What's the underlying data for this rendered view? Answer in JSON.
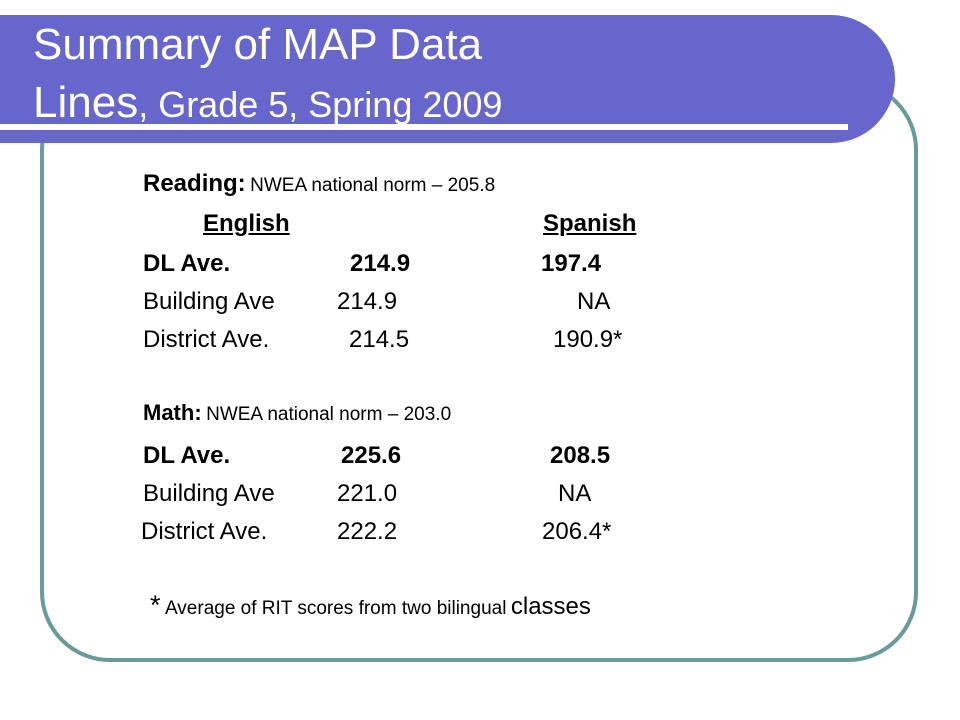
{
  "slide": {
    "title_line1": "Summary of MAP Data",
    "title_line2_big": "Lines",
    "title_line2_rest": ", Grade 5, Spring 2009"
  },
  "reading": {
    "label": "Reading:",
    "norm": "NWEA national norm – 205.8",
    "header_english": "English",
    "header_spanish": "Spanish",
    "rows": [
      {
        "label": "DL Ave.",
        "english": "214.9",
        "spanish": "197.4"
      },
      {
        "label": "Building Ave",
        "english": "214.9",
        "spanish": "NA"
      },
      {
        "label": "District Ave.",
        "english": "214.5",
        "spanish": "190.9*"
      }
    ]
  },
  "math": {
    "label": "Math:",
    "norm": "NWEA national norm – 203.0",
    "rows": [
      {
        "label": "DL Ave.",
        "english": "225.6",
        "spanish": "208.5"
      },
      {
        "label": "Building Ave",
        "english": "221.0",
        "spanish": "NA"
      },
      {
        "label": "District Ave.",
        "english": "222.2",
        "spanish": "206.4*"
      }
    ]
  },
  "footnote": {
    "star": "*",
    "text": "Average of RIT scores from two bilingual",
    "last_word": "classes"
  },
  "colors": {
    "title_bar": "#6666cc",
    "frame_border": "#6a9a9a"
  }
}
